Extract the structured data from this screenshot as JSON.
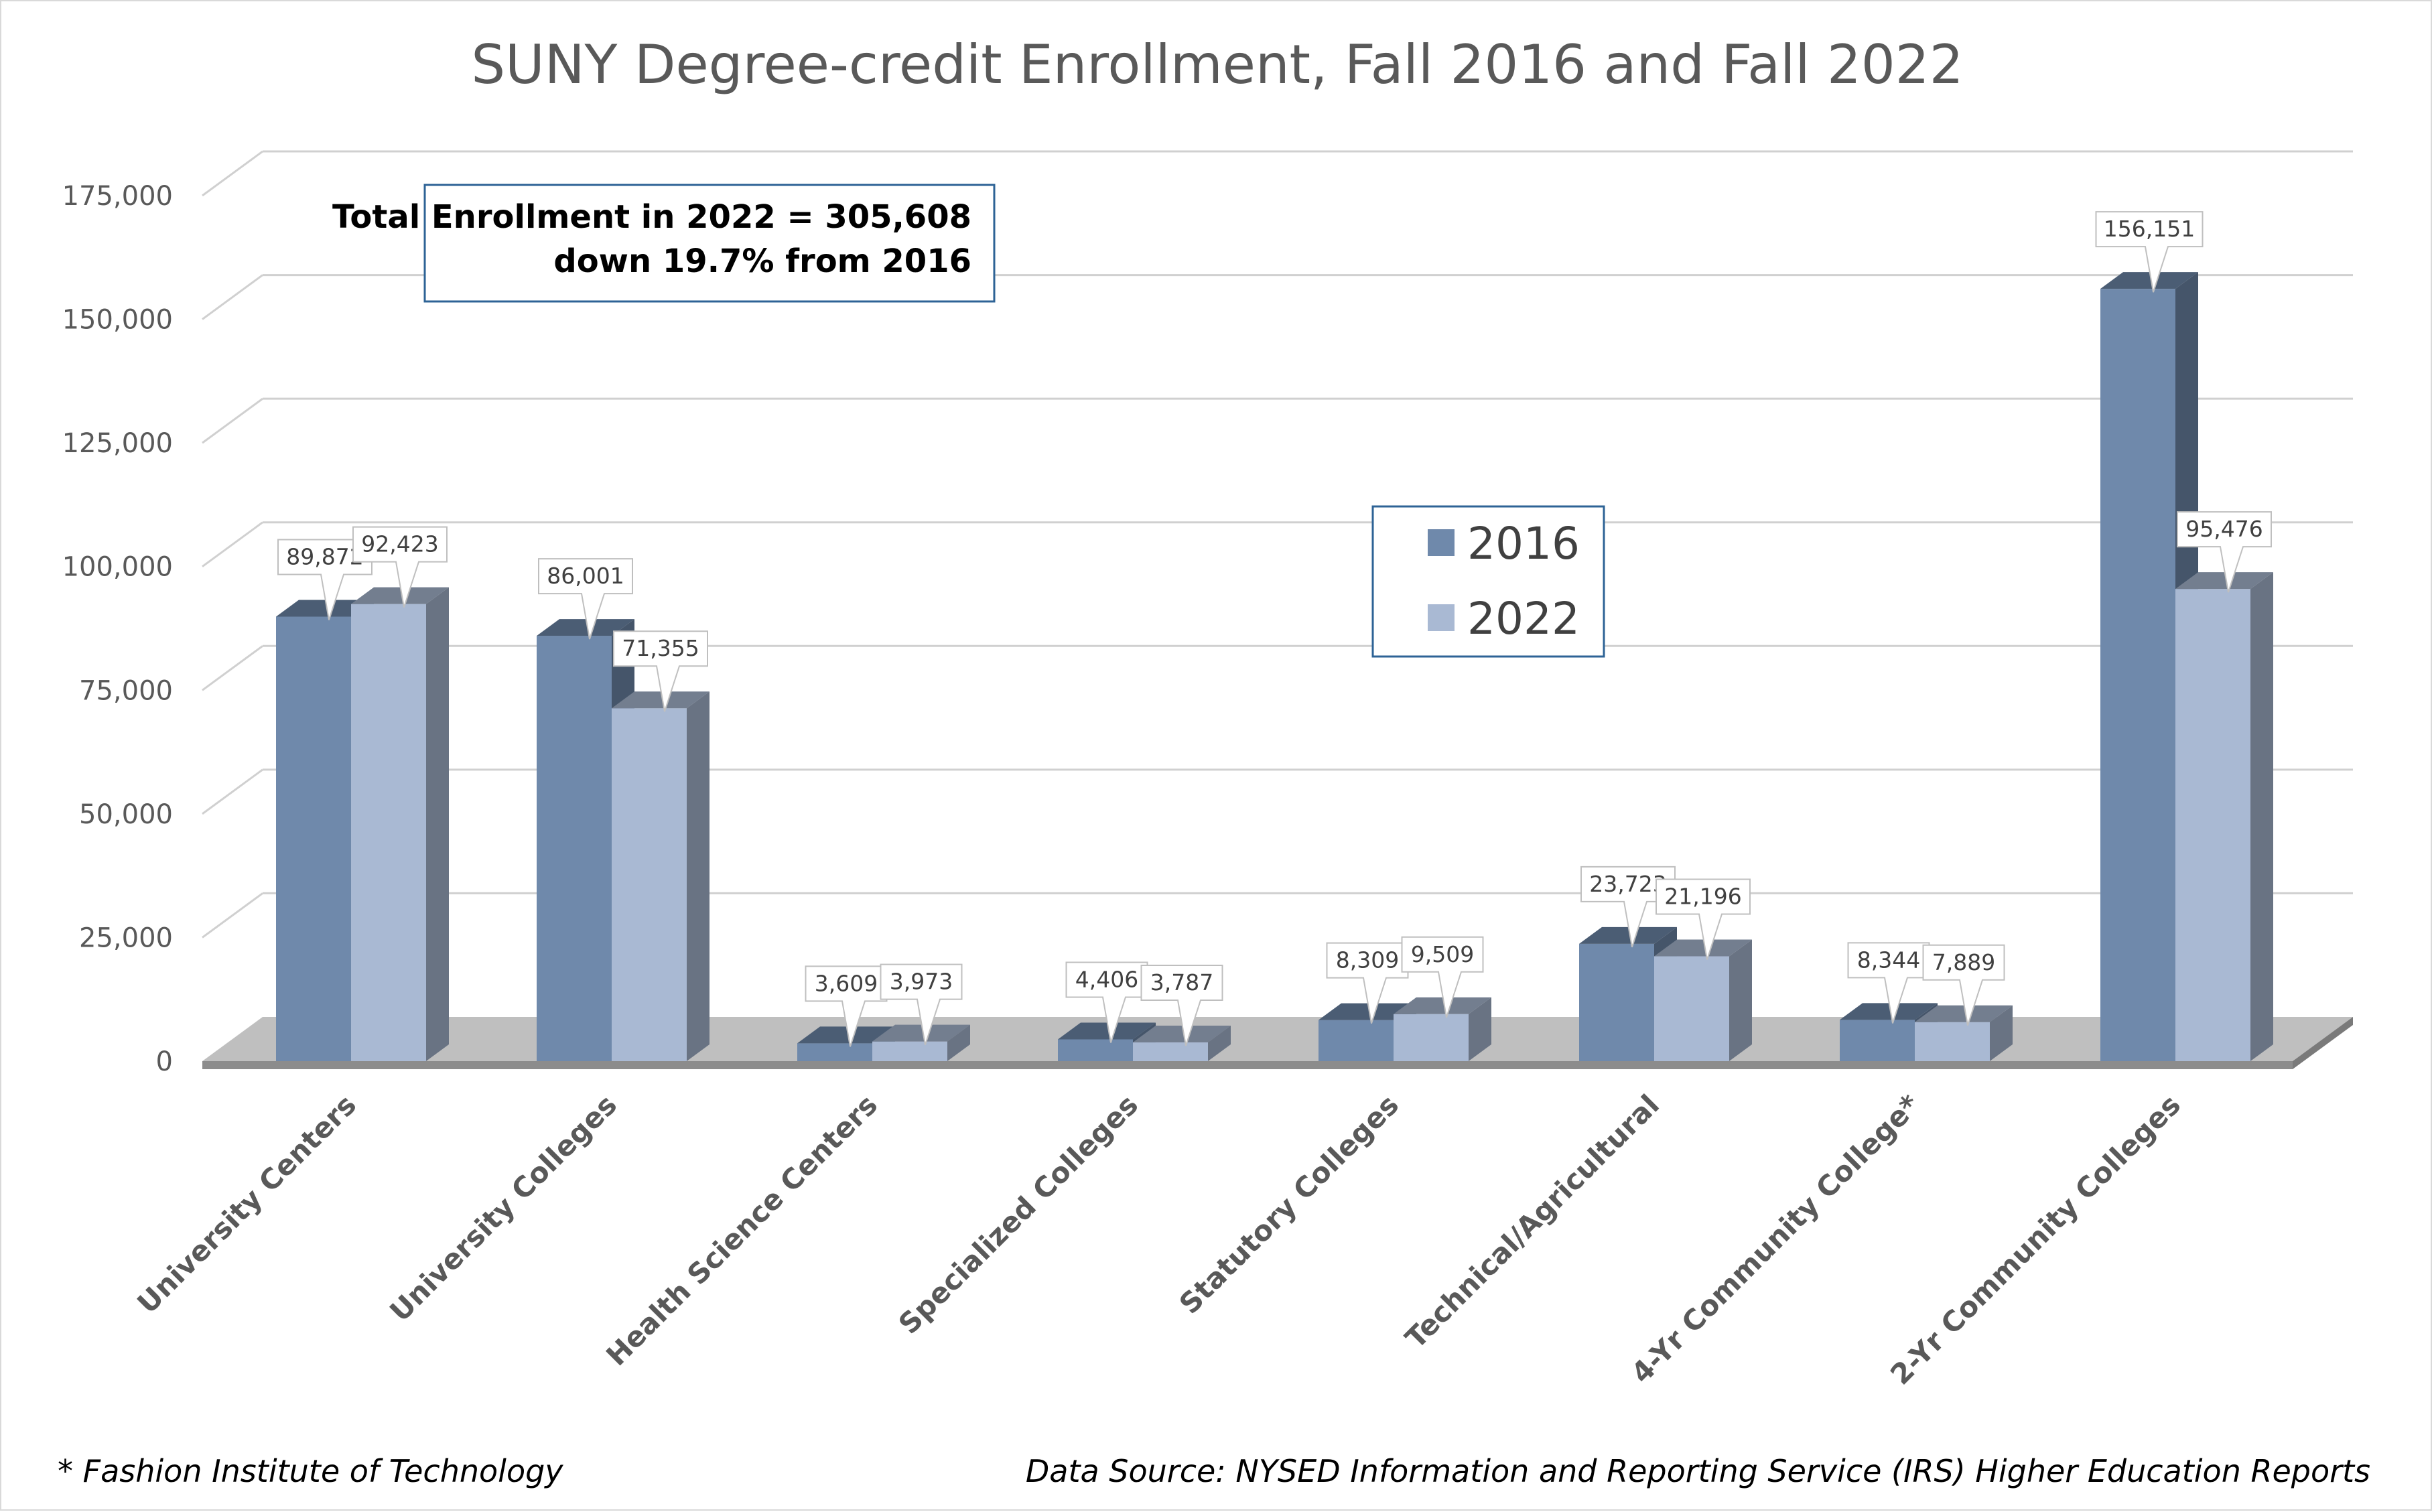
{
  "chart_data": {
    "type": "bar",
    "title": "SUNY Degree-credit Enrollment, Fall 2016 and Fall 2022",
    "categories": [
      "University Centers",
      "University Colleges",
      "Health Science Centers",
      "Specialized Colleges",
      "Statutory Colleges",
      "Technical/Agricultural",
      "4-Yr Community College*",
      "2-Yr Community Colleges"
    ],
    "series": [
      {
        "name": "2016",
        "color": "#6f89ab",
        "values": [
          89872,
          86001,
          3609,
          4406,
          8309,
          23723,
          8344,
          156151
        ],
        "labels": [
          "89,872",
          "86,001",
          "3,609",
          "4,406",
          "8,309",
          "23,723",
          "8,344",
          "156,151"
        ]
      },
      {
        "name": "2022",
        "color": "#a9b9d3",
        "values": [
          92423,
          71355,
          3973,
          3787,
          9509,
          21196,
          7889,
          95476
        ],
        "labels": [
          "92,423",
          "71,355",
          "3,973",
          "3,787",
          "9,509",
          "21,196",
          "7,889",
          "95,476"
        ]
      }
    ],
    "ylim": [
      0,
      175000
    ],
    "yticks": [
      "0",
      "25,000",
      "50,000",
      "75,000",
      "100,000",
      "125,000",
      "150,000",
      "175,000"
    ],
    "ytick_values": [
      0,
      25000,
      50000,
      75000,
      100000,
      125000,
      150000,
      175000
    ],
    "grid": true,
    "legend_position": "center",
    "annotation": {
      "line1": "Total Enrollment in 2022 = 305,608",
      "line2": "down 19.7% from 2016"
    },
    "footnote": "* Fashion Institute of Technology",
    "source": "Data Source: NYSED Information and Reporting Service (IRS) Higher Education Reports"
  }
}
